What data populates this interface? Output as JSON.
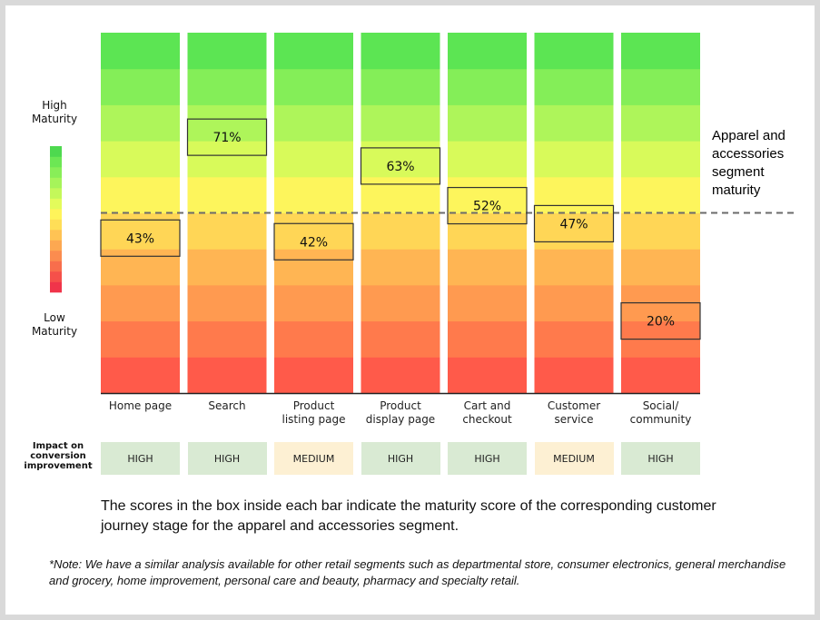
{
  "chart_data": {
    "type": "bar",
    "title": "",
    "categories": [
      "Home page",
      "Search",
      "Product\nlisting page",
      "Product\ndisplay page",
      "Cart and\ncheckout",
      "Customer\nservice",
      "Social/\ncommunity"
    ],
    "values": [
      43,
      71,
      42,
      63,
      52,
      47,
      20
    ],
    "value_labels": [
      "43%",
      "71%",
      "42%",
      "63%",
      "52%",
      "47%",
      "20%"
    ],
    "ylim": [
      0,
      100
    ],
    "segment_maturity": 50,
    "segment_label": "Apparel and accessories segment maturity",
    "scale_high": "High\nMaturity",
    "scale_low": "Low\nMaturity",
    "band_colors": [
      "#ff5a4a",
      "#ff7a4c",
      "#ff9a50",
      "#ffb553",
      "#ffd656",
      "#fdf55c",
      "#d8fa5a",
      "#aef55a",
      "#84ee58",
      "#5ce553"
    ],
    "legend_colors": [
      "#f0344a",
      "#f5504a",
      "#f86e4c",
      "#fb8c4f",
      "#fda851",
      "#ffc354",
      "#ffde57",
      "#fff45a",
      "#e3fb5b",
      "#c4f85a",
      "#a6f45a",
      "#88ee58",
      "#6ce754",
      "#4ed94f"
    ]
  },
  "impact": {
    "header": "Impact on\nconversion\nimprovement",
    "values": [
      "HIGH",
      "HIGH",
      "MEDIUM",
      "HIGH",
      "HIGH",
      "MEDIUM",
      "HIGH"
    ],
    "colors": {
      "HIGH": "#d9ead3",
      "MEDIUM": "#fdf0d3"
    }
  },
  "description": "The scores in the box inside each bar indicate the maturity score of the corresponding customer journey stage for the apparel and accessories segment.",
  "footnote": "*Note: We have a similar analysis available for other retail segments such as departmental store, consumer electronics, general merchandise and grocery, home improvement, personal care and beauty, pharmacy and specialty retail."
}
